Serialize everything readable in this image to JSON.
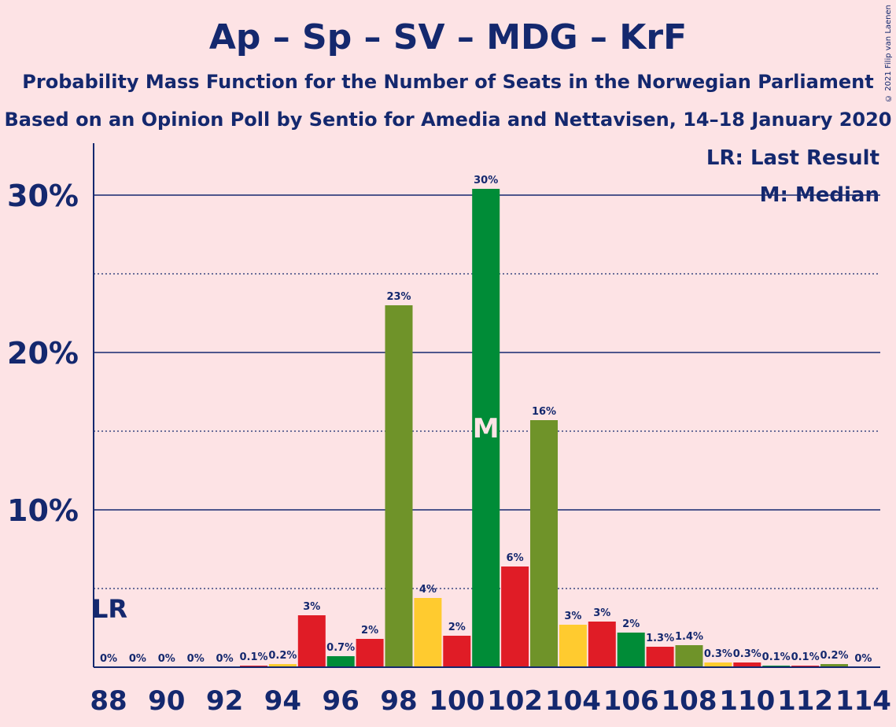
{
  "title": "Ap – Sp – SV – MDG – KrF",
  "subtitle_1": "Probability Mass Function for the Number of Seats in the Norwegian Parliament",
  "subtitle_2": "Based on an Opinion Poll by Sentio for Amedia and Nettavisen, 14–18 January 2020",
  "copyright": "© 2021 Filip van Laenen",
  "legend": {
    "last_result": "LR: Last Result",
    "median": "M: Median"
  },
  "markers": {
    "last_result_label": "LR",
    "median_label": "M"
  },
  "colors": {
    "background": "#fde3e5",
    "text": "#14286e",
    "Ap": "#e01c26",
    "Sp": "#6f9329",
    "SV": "#ffcb2f",
    "MDG": "#008c37",
    "KrF": "#ffcb2f"
  },
  "chart_data": {
    "type": "bar",
    "xlabel": "",
    "ylabel": "",
    "ylim": [
      0,
      33
    ],
    "y_ticks": [
      {
        "value": 10,
        "label": "10%"
      },
      {
        "value": 20,
        "label": "20%"
      },
      {
        "value": 30,
        "label": "30%"
      }
    ],
    "x_ticks": [
      "88",
      "90",
      "92",
      "94",
      "96",
      "98",
      "100",
      "102",
      "104",
      "106",
      "108",
      "110",
      "112",
      "114"
    ],
    "last_result_seat": 88,
    "median_seat": 101,
    "bars": [
      {
        "seat": 88,
        "value": 0,
        "label": "0%",
        "color": "#ffcb2f"
      },
      {
        "seat": 89,
        "value": 0,
        "label": "0%",
        "color": "#e01c26"
      },
      {
        "seat": 90,
        "value": 0,
        "label": "0%",
        "color": "#008c37"
      },
      {
        "seat": 91,
        "value": 0,
        "label": "0%",
        "color": "#6f9329"
      },
      {
        "seat": 92,
        "value": 0,
        "label": "0%",
        "color": "#ffcb2f"
      },
      {
        "seat": 93,
        "value": 0.1,
        "label": "0.1%",
        "color": "#e01c26"
      },
      {
        "seat": 94,
        "value": 0.2,
        "label": "0.2%",
        "color": "#ffcb2f"
      },
      {
        "seat": 95,
        "value": 3.3,
        "label": "3%",
        "color": "#e01c26"
      },
      {
        "seat": 96,
        "value": 0.7,
        "label": "0.7%",
        "color": "#008c37"
      },
      {
        "seat": 97,
        "value": 1.8,
        "label": "2%",
        "color": "#e01c26"
      },
      {
        "seat": 98,
        "value": 23.0,
        "label": "23%",
        "color": "#6f9329"
      },
      {
        "seat": 99,
        "value": 4.4,
        "label": "4%",
        "color": "#ffcb2f"
      },
      {
        "seat": 100,
        "value": 2.0,
        "label": "2%",
        "color": "#e01c26"
      },
      {
        "seat": 101,
        "value": 30.4,
        "label": "30%",
        "color": "#008c37"
      },
      {
        "seat": 102,
        "value": 6.4,
        "label": "6%",
        "color": "#e01c26"
      },
      {
        "seat": 103,
        "value": 15.7,
        "label": "16%",
        "color": "#6f9329"
      },
      {
        "seat": 104,
        "value": 2.7,
        "label": "3%",
        "color": "#ffcb2f"
      },
      {
        "seat": 105,
        "value": 2.9,
        "label": "3%",
        "color": "#e01c26"
      },
      {
        "seat": 106,
        "value": 2.2,
        "label": "2%",
        "color": "#008c37"
      },
      {
        "seat": 107,
        "value": 1.3,
        "label": "1.3%",
        "color": "#e01c26"
      },
      {
        "seat": 108,
        "value": 1.4,
        "label": "1.4%",
        "color": "#6f9329"
      },
      {
        "seat": 109,
        "value": 0.3,
        "label": "0.3%",
        "color": "#ffcb2f"
      },
      {
        "seat": 110,
        "value": 0.3,
        "label": "0.3%",
        "color": "#e01c26"
      },
      {
        "seat": 111,
        "value": 0.1,
        "label": "0.1%",
        "color": "#008c37"
      },
      {
        "seat": 112,
        "value": 0.1,
        "label": "0.1%",
        "color": "#e01c26"
      },
      {
        "seat": 113,
        "value": 0.2,
        "label": "0.2%",
        "color": "#6f9329"
      },
      {
        "seat": 114,
        "value": 0,
        "label": "0%",
        "color": "#ffcb2f"
      }
    ]
  }
}
